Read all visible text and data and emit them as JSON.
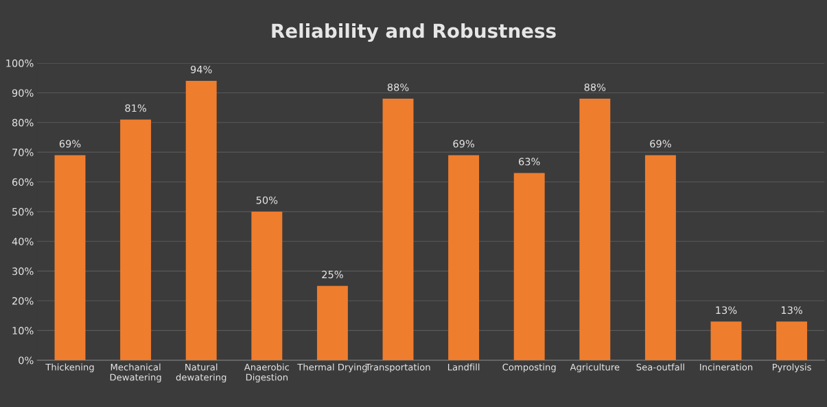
{
  "chart_data": {
    "type": "bar",
    "title": "Reliability and Robustness",
    "categories": [
      "Thickening",
      "Mechanical\nDewatering",
      "Natural\ndewatering",
      "Anaerobic\nDigestion",
      "Thermal Drying",
      "Transportation",
      "Landfill",
      "Composting",
      "Agriculture",
      "Sea-outfall",
      "Incineration",
      "Pyrolysis"
    ],
    "values": [
      69,
      81,
      94,
      50,
      25,
      88,
      69,
      63,
      88,
      69,
      13,
      13
    ],
    "value_labels": [
      "69%",
      "81%",
      "94%",
      "50%",
      "25%",
      "88%",
      "69%",
      "63%",
      "88%",
      "69%",
      "13%",
      "13%"
    ],
    "color": "#ef7d2e",
    "ylim": [
      0,
      100
    ],
    "yticks": [
      {
        "value": 0,
        "label": "0%"
      },
      {
        "value": 10,
        "label": "10%"
      },
      {
        "value": 20,
        "label": "20%"
      },
      {
        "value": 30,
        "label": "30%"
      },
      {
        "value": 40,
        "label": "40%"
      },
      {
        "value": 50,
        "label": "50%"
      },
      {
        "value": 60,
        "label": "60%"
      },
      {
        "value": 70,
        "label": "70%"
      },
      {
        "value": 80,
        "label": "80%"
      },
      {
        "value": 90,
        "label": "90%"
      },
      {
        "value": 100,
        "label": "100%"
      }
    ],
    "grid": "y",
    "legend": false
  }
}
